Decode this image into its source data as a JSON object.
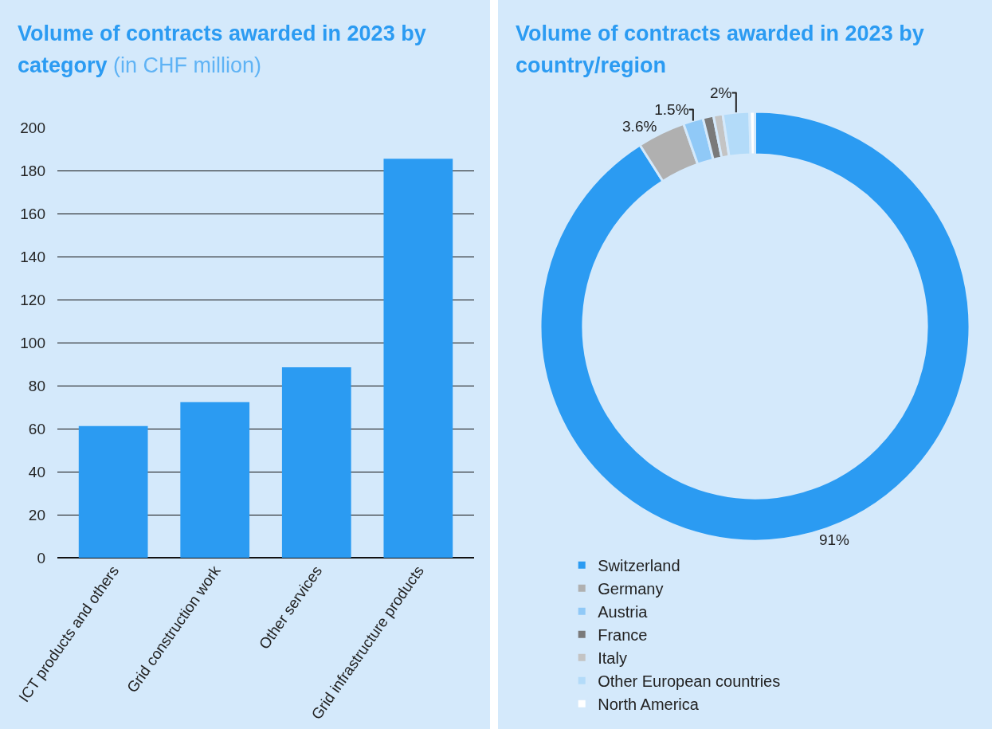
{
  "chart_data": [
    {
      "type": "bar",
      "title": "Volume of contracts awarded in 2023 by category",
      "subtitle": "(in CHF million)",
      "categories": [
        "ICT products and others",
        "Grid construction work",
        "Other services",
        "Grid infrastructure products"
      ],
      "values": [
        61.2,
        72.3,
        88.5,
        185.5
      ],
      "color": "#2b9bf2",
      "ylim": [
        0,
        200
      ],
      "yticks": [
        0,
        20,
        40,
        60,
        80,
        100,
        120,
        140,
        160,
        180,
        200
      ],
      "grid": "y"
    },
    {
      "type": "donut",
      "title": "Volume of contracts awarded in 2023 by country/region",
      "categories": [
        "Switzerland",
        "Germany",
        "Austria",
        "France",
        "Italy",
        "Other European countries",
        "North America"
      ],
      "values": [
        91,
        3.6,
        1.5,
        0.8,
        0.7,
        2,
        0.4
      ],
      "colors": [
        "#2b9bf2",
        "#b0b0b0",
        "#90c9f7",
        "#7a7a7a",
        "#c4c4c4",
        "#b3dbf9",
        "#ffffff"
      ],
      "value_labels": [
        "91%",
        "3.6%",
        "1.5%",
        null,
        null,
        "2%",
        null
      ],
      "legend": "bottom"
    }
  ]
}
